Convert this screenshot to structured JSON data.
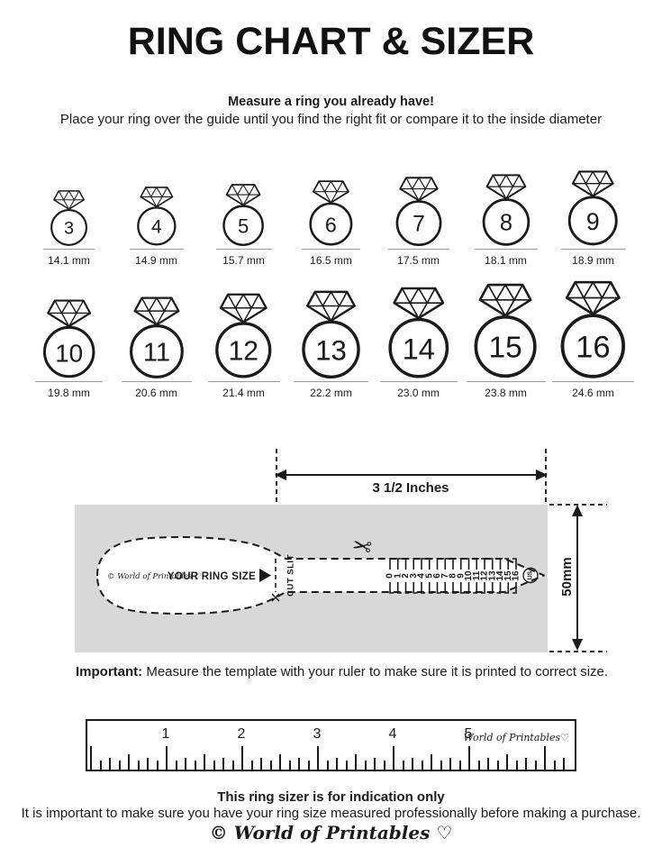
{
  "page": {
    "title": "RING CHART & SIZER"
  },
  "intro": {
    "heading": "Measure a ring you already have!",
    "text": "Place your ring over the guide until you find the right fit or compare it to the inside diameter"
  },
  "ring_chart": {
    "rows": [
      [
        {
          "size": "3",
          "mm": 14.1,
          "label": "14.1 mm"
        },
        {
          "size": "4",
          "mm": 14.9,
          "label": "14.9 mm"
        },
        {
          "size": "5",
          "mm": 15.7,
          "label": "15.7 mm"
        },
        {
          "size": "6",
          "mm": 16.5,
          "label": "16.5 mm"
        },
        {
          "size": "7",
          "mm": 17.5,
          "label": "17.5 mm"
        },
        {
          "size": "8",
          "mm": 18.1,
          "label": "18.1 mm"
        },
        {
          "size": "9",
          "mm": 18.9,
          "label": "18.9 mm"
        }
      ],
      [
        {
          "size": "10",
          "mm": 19.8,
          "label": "19.8 mm"
        },
        {
          "size": "11",
          "mm": 20.6,
          "label": "20.6 mm"
        },
        {
          "size": "12",
          "mm": 21.4,
          "label": "21.4 mm"
        },
        {
          "size": "13",
          "mm": 22.2,
          "label": "22.2 mm"
        },
        {
          "size": "14",
          "mm": 23.0,
          "label": "23.0 mm"
        },
        {
          "size": "15",
          "mm": 23.8,
          "label": "23.8 mm"
        },
        {
          "size": "16",
          "mm": 24.6,
          "label": "24.6 mm"
        }
      ]
    ]
  },
  "sizer": {
    "width_label": "3 1/2 Inches",
    "height_label": "50mm",
    "brand": "© World of Printables ♡",
    "ring_size_label": "YOUR RING SIZE",
    "cut_slit_label": "CUT SLIT",
    "scale_numbers": [
      "0",
      "1",
      "2",
      "3",
      "4",
      "5",
      "6",
      "7",
      "8",
      "9",
      "10",
      "11",
      "12",
      "13",
      "14",
      "15",
      "16"
    ],
    "us_label": "US",
    "scissors_icon": "✂",
    "box_color": "#d8d8d8"
  },
  "important": {
    "lead": "Important:",
    "text": " Measure the template with your ruler to make sure it is printed to correct size."
  },
  "ruler": {
    "numbers": [
      "1",
      "2",
      "3",
      "4",
      "5"
    ],
    "brand": "World of Printables♡"
  },
  "footer": {
    "heading": "This ring sizer is for indication only",
    "text": "It is important to make sure you have your ring size measured professionally before making a purchase.",
    "brand": "© World of Printables ♡"
  }
}
